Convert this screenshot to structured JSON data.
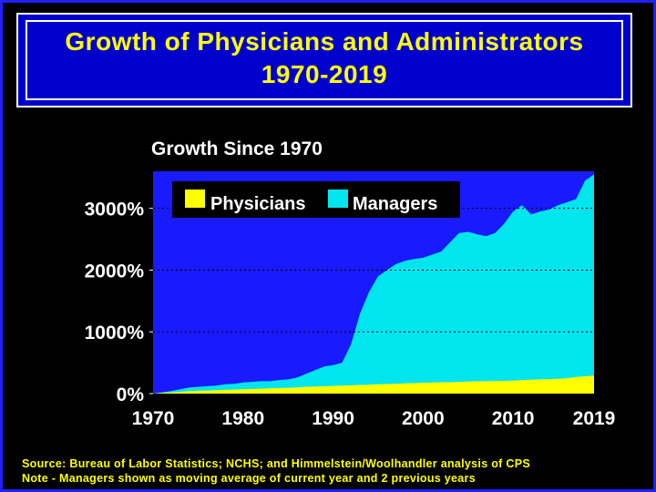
{
  "slide": {
    "title_line1": "Growth of Physicians and Administrators",
    "title_line2": "1970-2019",
    "subtitle": "Growth Since 1970",
    "source_note": "Source: Bureau of Labor Statistics; NCHS; and Himmelstein/Woolhandler analysis of CPS",
    "method_note": "Note - Managers shown as moving average of current year and 2 previous years"
  },
  "colors": {
    "background": "#000000",
    "title_box": "#0000cc",
    "plot_area": "#1a1aff",
    "physicians": "#ffff00",
    "managers": "#00e5ee",
    "text_yellow": "#ffff00",
    "text_white": "#ffffff"
  },
  "chart_data": {
    "type": "area",
    "title": "Growth Since 1970",
    "xlabel": "",
    "ylabel": "",
    "xlim": [
      1970,
      2019
    ],
    "ylim": [
      0,
      3600
    ],
    "x_ticks": [
      1970,
      1980,
      1990,
      2000,
      2010,
      2019
    ],
    "x_tick_labels": [
      "1970",
      "1980",
      "1990",
      "2000",
      "2010",
      "2019"
    ],
    "y_ticks": [
      0,
      1000,
      2000,
      3000
    ],
    "y_tick_labels": [
      "0%",
      "1000%",
      "2000%",
      "3000%"
    ],
    "grid": "dotted horizontal",
    "legend_position": "top-left",
    "x": [
      1970,
      1971,
      1972,
      1973,
      1974,
      1975,
      1976,
      1977,
      1978,
      1979,
      1980,
      1981,
      1982,
      1983,
      1984,
      1985,
      1986,
      1987,
      1988,
      1989,
      1990,
      1991,
      1992,
      1993,
      1994,
      1995,
      1996,
      1997,
      1998,
      1999,
      2000,
      2001,
      2002,
      2003,
      2004,
      2005,
      2006,
      2007,
      2008,
      2009,
      2010,
      2011,
      2012,
      2013,
      2014,
      2015,
      2016,
      2017,
      2018,
      2019
    ],
    "series": [
      {
        "name": "Managers",
        "values": [
          0,
          20,
          40,
          70,
          100,
          110,
          120,
          130,
          150,
          160,
          180,
          190,
          200,
          200,
          220,
          230,
          260,
          320,
          380,
          440,
          460,
          500,
          800,
          1300,
          1650,
          1900,
          2000,
          2100,
          2150,
          2180,
          2200,
          2250,
          2300,
          2450,
          2600,
          2620,
          2580,
          2550,
          2600,
          2750,
          2950,
          3050,
          2900,
          2950,
          2980,
          3050,
          3100,
          3150,
          3450,
          3550
        ],
        "color": "#00e5ee"
      },
      {
        "name": "Physicians",
        "values": [
          0,
          10,
          20,
          30,
          40,
          45,
          50,
          55,
          60,
          65,
          70,
          75,
          80,
          85,
          90,
          95,
          100,
          110,
          115,
          120,
          125,
          130,
          135,
          140,
          145,
          150,
          155,
          160,
          165,
          170,
          175,
          180,
          185,
          185,
          190,
          195,
          200,
          200,
          205,
          205,
          210,
          220,
          225,
          230,
          235,
          240,
          250,
          270,
          280,
          290
        ],
        "color": "#ffff00"
      }
    ]
  }
}
